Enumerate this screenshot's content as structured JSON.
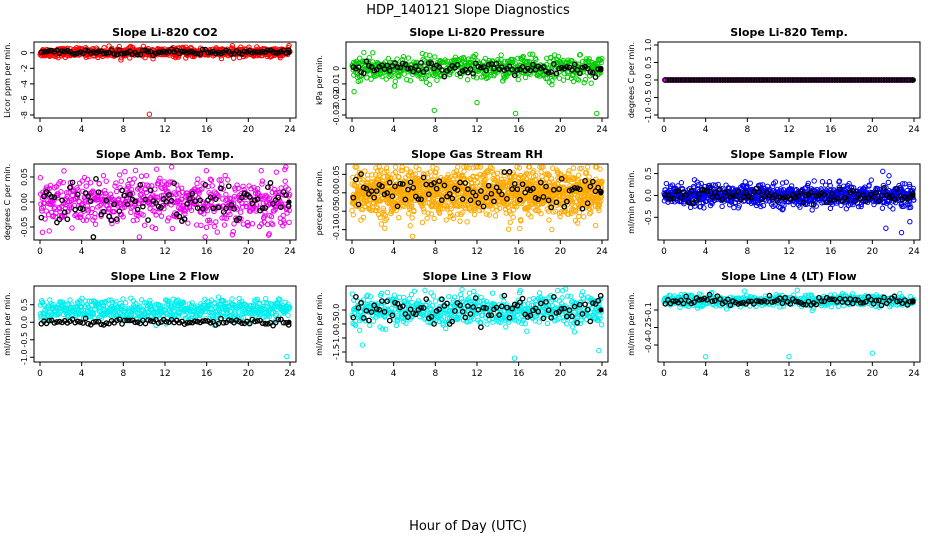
{
  "page": {
    "title": "HDP_140121  Slope Diagnostics",
    "xlabel": "Hour of Day (UTC)"
  },
  "colors": {
    "background": "#ffffff",
    "axis": "#000000",
    "highlight_points": "#000000"
  },
  "chart_data": [
    {
      "type": "scatter",
      "title": "Slope Li-820 CO2",
      "ylabel": "Licor ppm per min.",
      "color": "#ff0000",
      "xlim": [
        0,
        24
      ],
      "ylim": [
        -8,
        1
      ],
      "xticks": [
        0,
        4,
        8,
        12,
        16,
        20,
        24
      ],
      "xticklabels": [
        "0",
        "4",
        "8",
        "12",
        "16",
        "20",
        "24"
      ],
      "yticks": [
        -8,
        -6,
        -4,
        -2,
        0
      ],
      "yticklabels": [
        "-8",
        "-6",
        "-4",
        "-2",
        "0"
      ],
      "grid": false,
      "pattern": {
        "n": 720,
        "mean": 0.05,
        "spread": 0.28,
        "dense_n": 96,
        "dense_mean": 0.05,
        "dense_spread": 0.18,
        "outliers": [
          [
            10.5,
            -7.9
          ]
        ]
      }
    },
    {
      "type": "scatter",
      "title": "Slope Li-820 Pressure",
      "ylabel": "kPa per min.",
      "color": "#00cc00",
      "xlim": [
        0,
        24
      ],
      "ylim": [
        -0.03,
        0.015
      ],
      "xticks": [
        0,
        4,
        8,
        12,
        16,
        20,
        24
      ],
      "xticklabels": [
        "0",
        "4",
        "8",
        "12",
        "16",
        "20",
        "24"
      ],
      "yticks": [
        -0.03,
        -0.02,
        -0.01,
        0
      ],
      "yticklabels": [
        "-0.03",
        "-0.02",
        "-0.01",
        "0"
      ],
      "grid": false,
      "pattern": {
        "n": 560,
        "mean": 0.0,
        "spread": 0.004,
        "dense_n": 96,
        "dense_mean": 0.0,
        "dense_spread": 0.002,
        "outliers": [
          [
            0.2,
            -0.015
          ],
          [
            7.9,
            -0.027
          ],
          [
            15.7,
            -0.029
          ],
          [
            23.5,
            -0.029
          ],
          [
            2.0,
            0.01
          ],
          [
            12.0,
            -0.022
          ]
        ]
      }
    },
    {
      "type": "scatter",
      "title": "Slope Li-820 Temp.",
      "ylabel": "degrees C per min.",
      "color": "#ff00ff",
      "xlim": [
        0,
        24
      ],
      "ylim": [
        -1,
        1
      ],
      "xticks": [
        0,
        4,
        8,
        12,
        16,
        20,
        24
      ],
      "xticklabels": [
        "0",
        "4",
        "8",
        "12",
        "16",
        "20",
        "24"
      ],
      "yticks": [
        -1,
        -0.5,
        0,
        0.5,
        1
      ],
      "yticklabels": [
        "-1.0",
        "-0.5",
        "0.0",
        "0.5",
        "1.0"
      ],
      "grid": false,
      "pattern": {
        "n": 300,
        "mean": 0.0,
        "spread": 0.0,
        "dense_n": 96,
        "dense_mean": 0.0,
        "dense_spread": 0.0,
        "outliers": []
      }
    },
    {
      "type": "scatter",
      "title": "Slope Amb. Box Temp.",
      "ylabel": "degrees C per min.",
      "color": "#ee00ee",
      "xlim": [
        0,
        24
      ],
      "ylim": [
        -0.07,
        0.07
      ],
      "xticks": [
        0,
        4,
        8,
        12,
        16,
        20,
        24
      ],
      "xticklabels": [
        "0",
        "4",
        "8",
        "12",
        "16",
        "20",
        "24"
      ],
      "yticks": [
        -0.05,
        0,
        0.05
      ],
      "yticklabels": [
        "-0.05",
        "0.00",
        "0.05"
      ],
      "grid": false,
      "pattern": {
        "n": 620,
        "mean": 0.0,
        "spread": 0.025,
        "dense_n": 96,
        "dense_mean": 0.0,
        "dense_spread": 0.022,
        "outliers": [
          [
            23.5,
            0.065
          ]
        ]
      }
    },
    {
      "type": "scatter",
      "title": "Slope Gas Stream RH",
      "ylabel": "percent per min.",
      "color": "#ffaa00",
      "xlim": [
        0,
        24
      ],
      "ylim": [
        -0.12,
        0.07
      ],
      "xticks": [
        0,
        4,
        8,
        12,
        16,
        20,
        24
      ],
      "xticklabels": [
        "0",
        "4",
        "8",
        "12",
        "16",
        "20",
        "24"
      ],
      "yticks": [
        -0.1,
        -0.05,
        0,
        0.05
      ],
      "yticklabels": [
        "-0.10",
        "-0.05",
        "0.00",
        "0.05"
      ],
      "grid": false,
      "pattern": {
        "n": 1400,
        "mean": 0.0,
        "spread": 0.032,
        "dense_n": 96,
        "dense_mean": 0.0,
        "dense_spread": 0.025,
        "outliers": [
          [
            5.8,
            -0.118
          ]
        ]
      }
    },
    {
      "type": "scatter",
      "title": "Slope Sample Flow",
      "ylabel": "ml/min per min.",
      "color": "#0000ee",
      "xlim": [
        0,
        24
      ],
      "ylim": [
        -0.95,
        0.65
      ],
      "xticks": [
        0,
        4,
        8,
        12,
        16,
        20,
        24
      ],
      "xticklabels": [
        "0",
        "4",
        "8",
        "12",
        "16",
        "20",
        "24"
      ],
      "yticks": [
        -0.5,
        0,
        0.5
      ],
      "yticklabels": [
        "-0.5",
        "0.0",
        "0.5"
      ],
      "grid": false,
      "pattern": {
        "n": 900,
        "mean": 0.0,
        "spread": 0.12,
        "dense_n": 96,
        "dense_mean": 0.0,
        "dense_spread": 0.09,
        "outliers": [
          [
            21.3,
            -0.75
          ],
          [
            22.8,
            -0.85
          ],
          [
            23.6,
            -0.6
          ],
          [
            21.0,
            0.55
          ],
          [
            21.6,
            0.45
          ],
          [
            19.9,
            0.35
          ]
        ]
      }
    },
    {
      "type": "scatter",
      "title": "Slope Line 2 Flow",
      "ylabel": "ml/min per min.",
      "color": "#00eeee",
      "xlim": [
        0,
        24
      ],
      "ylim": [
        -1.05,
        0.95
      ],
      "xticks": [
        0,
        4,
        8,
        12,
        16,
        20,
        24
      ],
      "xticklabels": [
        "0",
        "4",
        "8",
        "12",
        "16",
        "20",
        "24"
      ],
      "yticks": [
        -1,
        -0.5,
        0,
        0.5
      ],
      "yticklabels": [
        "-1.0",
        "-0.5",
        "0.0",
        "0.5"
      ],
      "grid": false,
      "pattern": {
        "n": 620,
        "mean": 0.35,
        "spread": 0.15,
        "dense_n": 96,
        "dense_mean": 0.0,
        "dense_spread": 0.04,
        "outliers": [
          [
            23.7,
            -0.98
          ]
        ]
      }
    },
    {
      "type": "scatter",
      "title": "Slope Line 3 Flow",
      "ylabel": "ml/min per min.",
      "color": "#00eeee",
      "xlim": [
        0,
        24
      ],
      "ylim": [
        -1.75,
        0.75
      ],
      "xticks": [
        0,
        4,
        8,
        12,
        16,
        20,
        24
      ],
      "xticklabels": [
        "0",
        "4",
        "8",
        "12",
        "16",
        "20",
        "24"
      ],
      "yticks": [
        -1.5,
        -1,
        -0.5,
        0
      ],
      "yticklabels": [
        "-1.5",
        "-1.0",
        "-0.5",
        "0.0"
      ],
      "grid": false,
      "pattern": {
        "n": 620,
        "mean": 0.0,
        "spread": 0.28,
        "dense_n": 96,
        "dense_mean": 0.0,
        "dense_spread": 0.25,
        "outliers": [
          [
            15.6,
            -1.72
          ],
          [
            23.7,
            -1.45
          ],
          [
            1.0,
            -1.25
          ],
          [
            13.5,
            0.6
          ]
        ]
      }
    },
    {
      "type": "scatter",
      "title": "Slope Line 4 (LT) Flow",
      "ylabel": "ml/min per min.",
      "color": "#00eeee",
      "xlim": [
        0,
        24
      ],
      "ylim": [
        -0.52,
        0.08
      ],
      "xticks": [
        0,
        4,
        8,
        12,
        16,
        20,
        24
      ],
      "xticklabels": [
        "0",
        "4",
        "8",
        "12",
        "16",
        "20",
        "24"
      ],
      "yticks": [
        -0.4,
        -0.25,
        -0.1
      ],
      "yticklabels": [
        "-0.4",
        "-0.25",
        "-0.1"
      ],
      "grid": false,
      "pattern": {
        "n": 520,
        "mean": -0.02,
        "spread": 0.025,
        "dense_n": 96,
        "dense_mean": -0.02,
        "dense_spread": 0.02,
        "outliers": [
          [
            4.0,
            -0.5
          ],
          [
            12.0,
            -0.5
          ],
          [
            20.0,
            -0.47
          ]
        ]
      }
    }
  ]
}
